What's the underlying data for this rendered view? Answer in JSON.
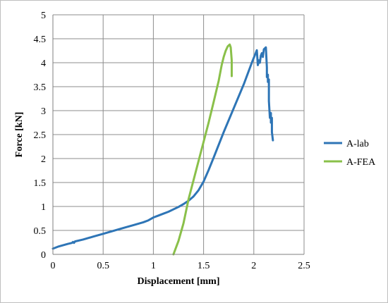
{
  "chart_data": {
    "type": "line",
    "title": "",
    "xlabel": "Displacement [mm]",
    "ylabel": "Force [kN]",
    "xlim": [
      0,
      2.5
    ],
    "ylim": [
      0,
      5
    ],
    "xticks": [
      0,
      0.5,
      1,
      1.5,
      2,
      2.5
    ],
    "xtick_labels": [
      "0",
      "0.5",
      "1",
      "1.5",
      "2",
      "2.5"
    ],
    "yticks": [
      0,
      0.5,
      1,
      1.5,
      2,
      2.5,
      3,
      3.5,
      4,
      4.5,
      5
    ],
    "ytick_labels": [
      "0",
      "0.5",
      "1",
      "1.5",
      "2",
      "2.5",
      "3",
      "3.5",
      "4",
      "4.5",
      "5"
    ],
    "grid": true,
    "legend_position": "right",
    "series": [
      {
        "name": "A-lab",
        "color": "#2e75b6",
        "points": [
          [
            0.0,
            0.12
          ],
          [
            0.05,
            0.16
          ],
          [
            0.1,
            0.19
          ],
          [
            0.15,
            0.22
          ],
          [
            0.19,
            0.24
          ],
          [
            0.2,
            0.26
          ],
          [
            0.21,
            0.24
          ],
          [
            0.22,
            0.27
          ],
          [
            0.3,
            0.31
          ],
          [
            0.4,
            0.37
          ],
          [
            0.5,
            0.43
          ],
          [
            0.6,
            0.49
          ],
          [
            0.7,
            0.55
          ],
          [
            0.8,
            0.61
          ],
          [
            0.9,
            0.67
          ],
          [
            0.95,
            0.71
          ],
          [
            1.0,
            0.77
          ],
          [
            1.05,
            0.81
          ],
          [
            1.1,
            0.85
          ],
          [
            1.15,
            0.89
          ],
          [
            1.2,
            0.94
          ],
          [
            1.25,
            0.99
          ],
          [
            1.3,
            1.05
          ],
          [
            1.35,
            1.12
          ],
          [
            1.4,
            1.21
          ],
          [
            1.45,
            1.34
          ],
          [
            1.5,
            1.52
          ],
          [
            1.55,
            1.76
          ],
          [
            1.6,
            2.02
          ],
          [
            1.7,
            2.55
          ],
          [
            1.8,
            3.05
          ],
          [
            1.9,
            3.55
          ],
          [
            1.98,
            4.0
          ],
          [
            2.03,
            4.26
          ],
          [
            2.04,
            3.95
          ],
          [
            2.05,
            4.05
          ],
          [
            2.06,
            4.0
          ],
          [
            2.07,
            4.15
          ],
          [
            2.08,
            4.2
          ],
          [
            2.09,
            4.12
          ],
          [
            2.1,
            4.28
          ],
          [
            2.12,
            4.32
          ],
          [
            2.13,
            3.9
          ],
          [
            2.13,
            3.7
          ],
          [
            2.14,
            3.75
          ],
          [
            2.14,
            3.6
          ],
          [
            2.15,
            3.65
          ],
          [
            2.15,
            3.2
          ],
          [
            2.16,
            2.85
          ],
          [
            2.17,
            2.95
          ],
          [
            2.17,
            2.75
          ],
          [
            2.18,
            2.85
          ],
          [
            2.18,
            2.55
          ],
          [
            2.19,
            2.38
          ]
        ]
      },
      {
        "name": "A-FEA",
        "color": "#8ac04a",
        "points": [
          [
            1.2,
            0.0
          ],
          [
            1.25,
            0.28
          ],
          [
            1.3,
            0.65
          ],
          [
            1.35,
            1.15
          ],
          [
            1.4,
            1.55
          ],
          [
            1.45,
            1.95
          ],
          [
            1.5,
            2.35
          ],
          [
            1.55,
            2.75
          ],
          [
            1.6,
            3.18
          ],
          [
            1.65,
            3.62
          ],
          [
            1.68,
            3.95
          ],
          [
            1.7,
            4.12
          ],
          [
            1.72,
            4.25
          ],
          [
            1.74,
            4.34
          ],
          [
            1.76,
            4.38
          ],
          [
            1.77,
            4.32
          ],
          [
            1.78,
            4.05
          ],
          [
            1.78,
            3.72
          ]
        ]
      }
    ]
  }
}
